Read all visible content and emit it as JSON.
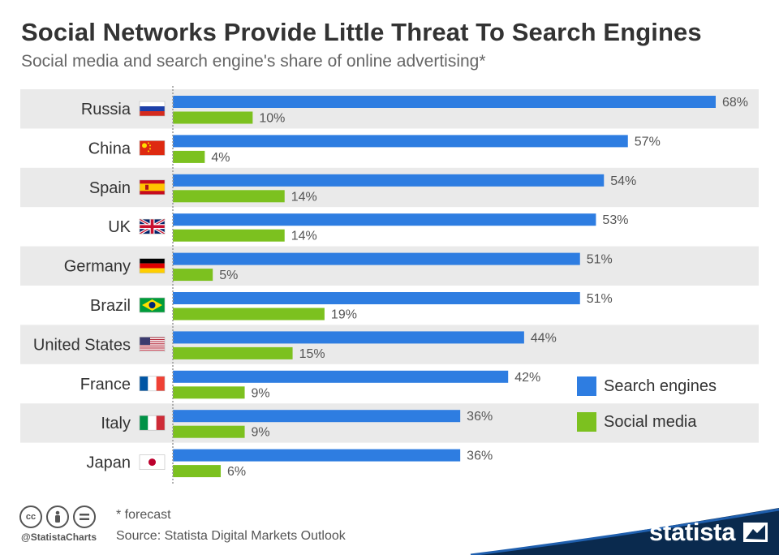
{
  "header": {
    "title": "Social Networks Provide Little Threat To Search Engines",
    "subtitle": "Social media and search engine's share of online advertising*"
  },
  "chart_data": {
    "type": "bar",
    "orientation": "horizontal",
    "categories": [
      "Russia",
      "China",
      "Spain",
      "UK",
      "Germany",
      "Brazil",
      "United States",
      "France",
      "Italy",
      "Japan"
    ],
    "category_icons": [
      "flag-russia-icon",
      "flag-china-icon",
      "flag-spain-icon",
      "flag-uk-icon",
      "flag-germany-icon",
      "flag-brazil-icon",
      "flag-usa-icon",
      "flag-france-icon",
      "flag-italy-icon",
      "flag-japan-icon"
    ],
    "series": [
      {
        "name": "Search engines",
        "color": "#2e7de1",
        "values": [
          68,
          57,
          54,
          53,
          51,
          51,
          44,
          42,
          36,
          36
        ]
      },
      {
        "name": "Social media",
        "color": "#7cc11f",
        "values": [
          10,
          4,
          14,
          14,
          5,
          19,
          15,
          9,
          9,
          6
        ]
      }
    ],
    "value_suffix": "%",
    "xlim": [
      0,
      68
    ],
    "grid": false,
    "legend_position": "bottom-right",
    "row_stripe_color": "#eaeaea"
  },
  "footer": {
    "note": "* forecast",
    "source": "Source: Statista Digital Markets Outlook",
    "handle": "@StatistaCharts",
    "license_icons": [
      "cc-icon",
      "by-icon",
      "nd-icon"
    ],
    "brand": "statista"
  },
  "colors": {
    "brand_band": "#0a2a4e",
    "band_accent": "#1f5fae"
  }
}
